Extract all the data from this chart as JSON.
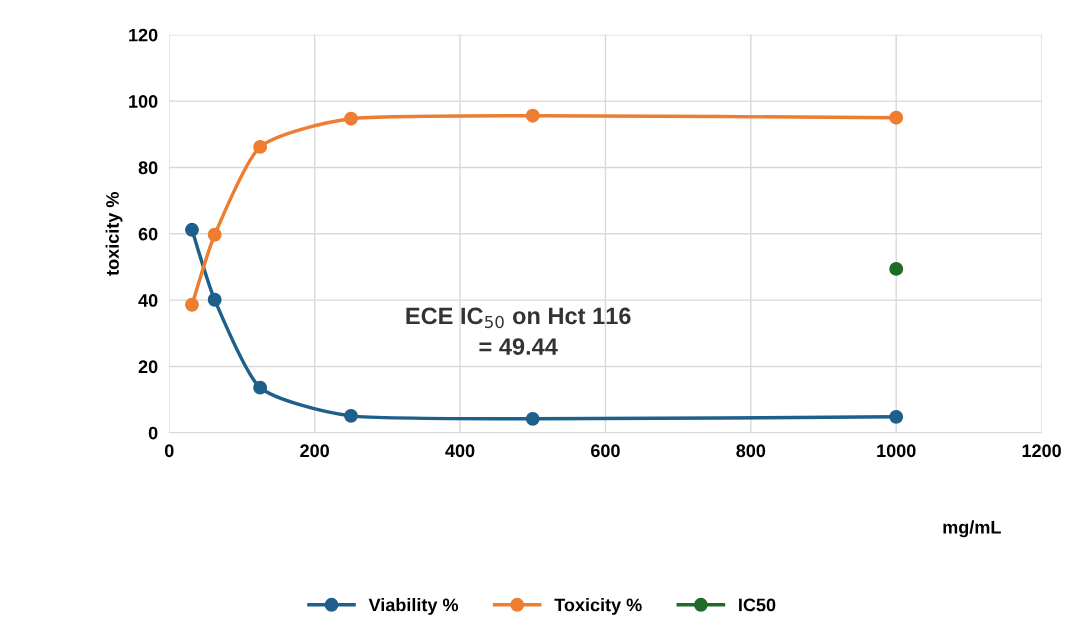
{
  "chart_data": {
    "type": "line",
    "xlabel": "mg/mL",
    "ylabel": "toxicity %",
    "xlim": [
      0,
      1200
    ],
    "xticks": [
      0,
      200,
      400,
      600,
      800,
      1000,
      1200
    ],
    "ylim": [
      0,
      120
    ],
    "yticks": [
      0,
      20,
      40,
      60,
      80,
      100,
      120
    ],
    "grid": true,
    "legend": "bottom",
    "marker": "circle",
    "series": [
      {
        "name": "Viability %",
        "color": "#1f5f8b",
        "x": [
          31.25,
          62.5,
          125,
          250,
          500,
          1000
        ],
        "values": [
          61.2,
          40.1,
          13.6,
          5.1,
          4.2,
          4.8
        ]
      },
      {
        "name": "Toxicity %",
        "color": "#ed7d31",
        "x": [
          31.25,
          62.5,
          125,
          250,
          500,
          1000
        ],
        "values": [
          38.6,
          59.7,
          86.2,
          94.7,
          95.6,
          95.0
        ]
      },
      {
        "name": "IC50",
        "type": "scatter",
        "color": "#1e6b2a",
        "x": [
          1000
        ],
        "values": [
          49.4
        ]
      }
    ],
    "annotations": [
      "ECE IC$_{50}$ on Hct 116\n= 49.44"
    ]
  }
}
